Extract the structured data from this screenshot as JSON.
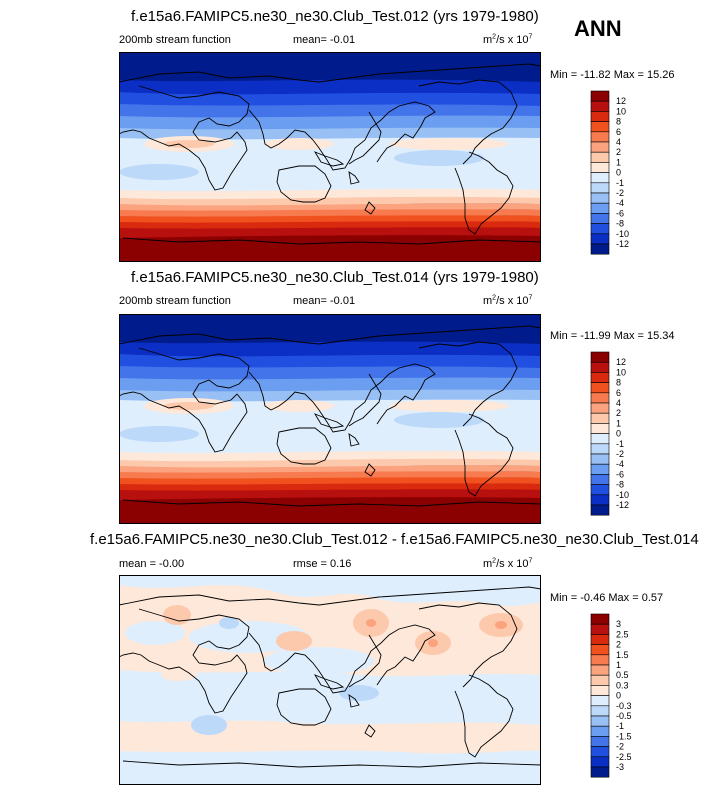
{
  "season_label": "ANN",
  "panels": [
    {
      "title": "f.e15a6.FAMIPC5.ne30_ne30.Club_Test.012 (yrs 1979-1980)",
      "left_label": "200mb stream function",
      "mid_label": "mean=  -0.01",
      "units_main": "m",
      "units_exp1": "2",
      "units_mid": "/s x 10",
      "units_exp2": "7",
      "minmax": "Min = -11.82 Max =  15.26"
    },
    {
      "title": "f.e15a6.FAMIPC5.ne30_ne30.Club_Test.014 (yrs 1979-1980)",
      "left_label": "200mb stream function",
      "mid_label": "mean=  -0.01",
      "units_main": "m",
      "units_exp1": "2",
      "units_mid": "/s x 10",
      "units_exp2": "7",
      "minmax": "Min = -11.99 Max =  15.34"
    },
    {
      "title": "f.e15a6.FAMIPC5.ne30_ne30.Club_Test.012 - f.e15a6.FAMIPC5.ne30_ne30.Club_Test.014",
      "left_label": "mean =  -0.00",
      "mid_label": "rmse =  0.16",
      "units_main": "m",
      "units_exp1": "2",
      "units_mid": "/s x 10",
      "units_exp2": "7",
      "minmax": "Min = -0.46 Max =  0.57"
    }
  ],
  "chart_data": [
    {
      "type": "heatmap",
      "title": "f.e15a6.FAMIPC5.ne30_ne30.Club_Test.012 (yrs 1979-1980)",
      "variable": "200mb stream function",
      "mean": -0.01,
      "min": -11.82,
      "max": 15.26,
      "colorbar_labels": [
        "12",
        "10",
        "8",
        "6",
        "4",
        "2",
        "1",
        "0",
        "-1",
        "-2",
        "-4",
        "-6",
        "-8",
        "-10",
        "-12"
      ],
      "colors": [
        "#8b0000",
        "#b80f0f",
        "#d9290e",
        "#f0511f",
        "#f77b4f",
        "#fba37f",
        "#fdc9ad",
        "#fde8da",
        "#dfeefc",
        "#bcd9fa",
        "#99c0f4",
        "#6b9ef0",
        "#4474ea",
        "#2150e0",
        "#0b2ec4",
        "#001c8c"
      ]
    },
    {
      "type": "heatmap",
      "title": "f.e15a6.FAMIPC5.ne30_ne30.Club_Test.014 (yrs 1979-1980)",
      "variable": "200mb stream function",
      "mean": -0.01,
      "min": -11.99,
      "max": 15.34,
      "colorbar_labels": [
        "12",
        "10",
        "8",
        "6",
        "4",
        "2",
        "1",
        "0",
        "-1",
        "-2",
        "-4",
        "-6",
        "-8",
        "-10",
        "-12"
      ],
      "colors": [
        "#8b0000",
        "#b80f0f",
        "#d9290e",
        "#f0511f",
        "#f77b4f",
        "#fba37f",
        "#fdc9ad",
        "#fde8da",
        "#dfeefc",
        "#bcd9fa",
        "#99c0f4",
        "#6b9ef0",
        "#4474ea",
        "#2150e0",
        "#0b2ec4",
        "#001c8c"
      ]
    },
    {
      "type": "heatmap",
      "title": "f.e15a6.FAMIPC5.ne30_ne30.Club_Test.012 - f.e15a6.FAMIPC5.ne30_ne30.Club_Test.014",
      "mean": 0.0,
      "rmse": 0.16,
      "min": -0.46,
      "max": 0.57,
      "colorbar_labels": [
        "3",
        "2.5",
        "2",
        "1.5",
        "1",
        "0.5",
        "0.3",
        "0",
        "-0.3",
        "-0.5",
        "-1",
        "-1.5",
        "-2",
        "-2.5",
        "-3"
      ],
      "colors": [
        "#8b0000",
        "#b80f0f",
        "#d9290e",
        "#f0511f",
        "#f77b4f",
        "#fba37f",
        "#fdc9ad",
        "#fde8da",
        "#dfeefc",
        "#bcd9fa",
        "#99c0f4",
        "#6b9ef0",
        "#4474ea",
        "#2150e0",
        "#0b2ec4",
        "#001c8c"
      ]
    }
  ]
}
